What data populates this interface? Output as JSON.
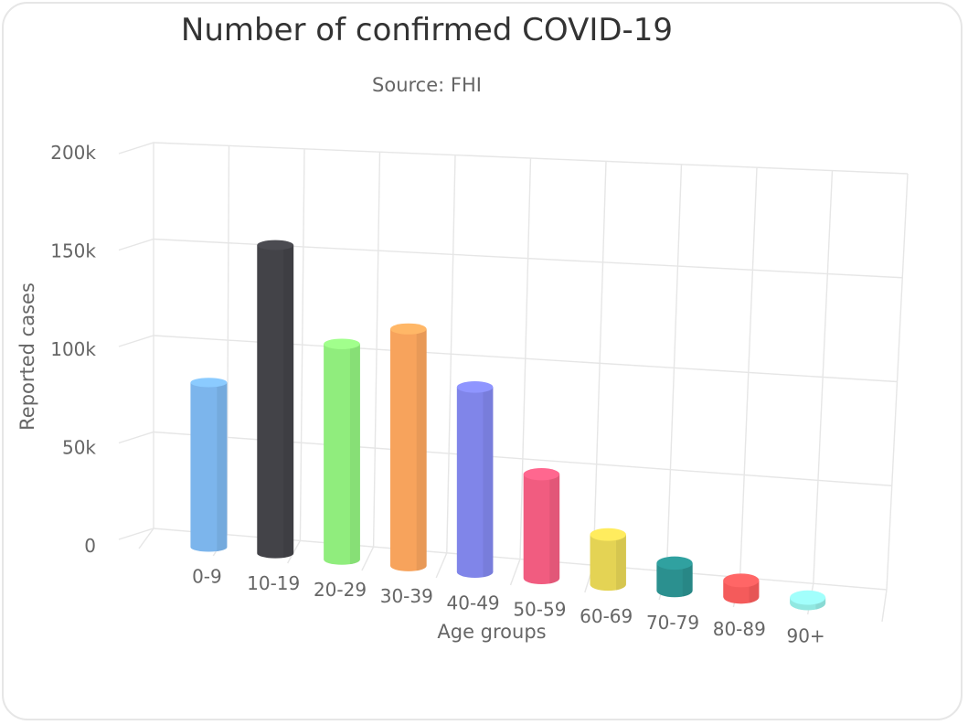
{
  "chart_data": {
    "type": "bar",
    "title": "Number of confirmed COVID-19",
    "subtitle": "Source: FHI",
    "xlabel": "Age groups",
    "ylabel": "Reported cases",
    "categories": [
      "0-9",
      "10-19",
      "20-29",
      "30-39",
      "40-49",
      "50-59",
      "60-69",
      "70-79",
      "80-89",
      "90+"
    ],
    "values": [
      86000,
      162000,
      114000,
      126000,
      99000,
      56000,
      27000,
      15000,
      9000,
      3000
    ],
    "colors": [
      "#7cb5ec",
      "#434348",
      "#90ed7d",
      "#f7a35c",
      "#8085e9",
      "#f15c80",
      "#e4d354",
      "#2b908f",
      "#f45b5b",
      "#91e8e1"
    ],
    "yticks": [
      "0",
      "50k",
      "100k",
      "150k",
      "200k"
    ],
    "ylim": [
      0,
      200000
    ],
    "grid": true,
    "style": "3d-cylinder"
  }
}
